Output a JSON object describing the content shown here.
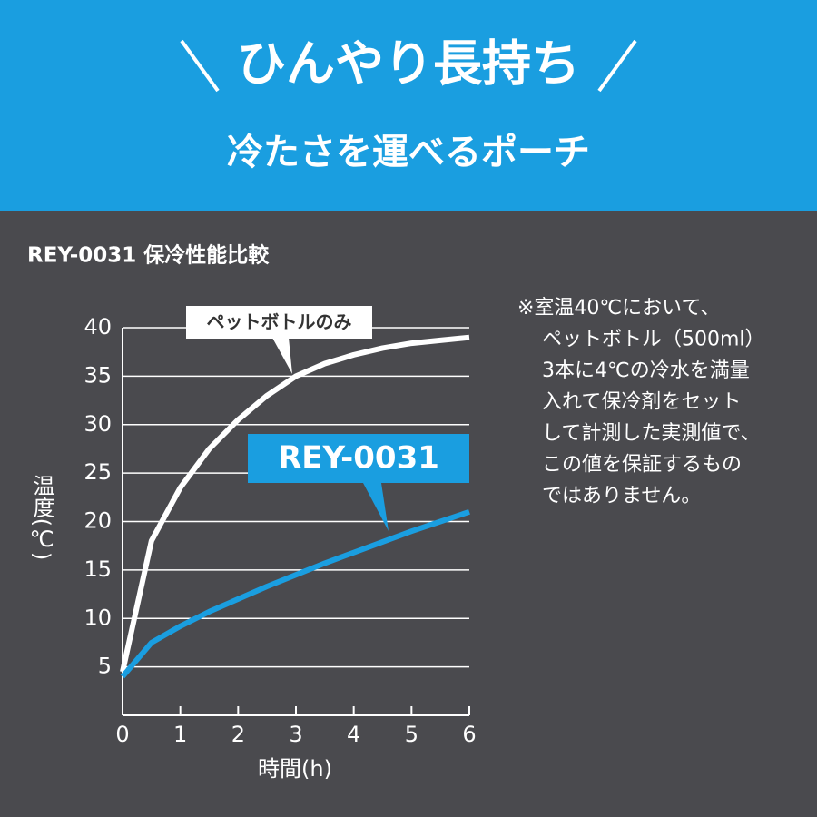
{
  "header": {
    "title": "ひんやり長持ち",
    "subtitle": "冷たさを運べるポーチ"
  },
  "chart_data": {
    "type": "line",
    "title": "REY-0031 保冷性能比較",
    "x_label": "時間(h)",
    "y_label": "温度(℃)",
    "x": [
      0,
      0.5,
      1,
      1.5,
      2,
      2.5,
      3,
      3.5,
      4,
      4.5,
      5,
      5.5,
      6
    ],
    "series": [
      {
        "name": "ペットボトルのみ",
        "color": "#ffffff",
        "values": [
          4.5,
          18,
          23.5,
          27.5,
          30.5,
          33,
          35,
          36.3,
          37.2,
          37.9,
          38.4,
          38.7,
          39
        ]
      },
      {
        "name": "REY-0031",
        "color": "#1a9ee0",
        "values": [
          4,
          7.5,
          9.2,
          10.7,
          12,
          13.3,
          14.5,
          15.7,
          16.8,
          17.9,
          19,
          20,
          21
        ]
      }
    ],
    "xlim": [
      0,
      6
    ],
    "xticks": [
      0,
      1,
      2,
      3,
      4,
      5,
      6
    ],
    "ylim": [
      0,
      40
    ],
    "yticks": [
      5,
      10,
      15,
      20,
      25,
      30,
      35,
      40
    ],
    "grid": true
  },
  "note": [
    "※室温40℃において、",
    "ペットボトル（500ml）",
    "3本に4℃の冷水を満量",
    "入れて保冷剤をセット",
    "して計測した実測値で、",
    "この値を保証するもの",
    "ではありません。"
  ]
}
